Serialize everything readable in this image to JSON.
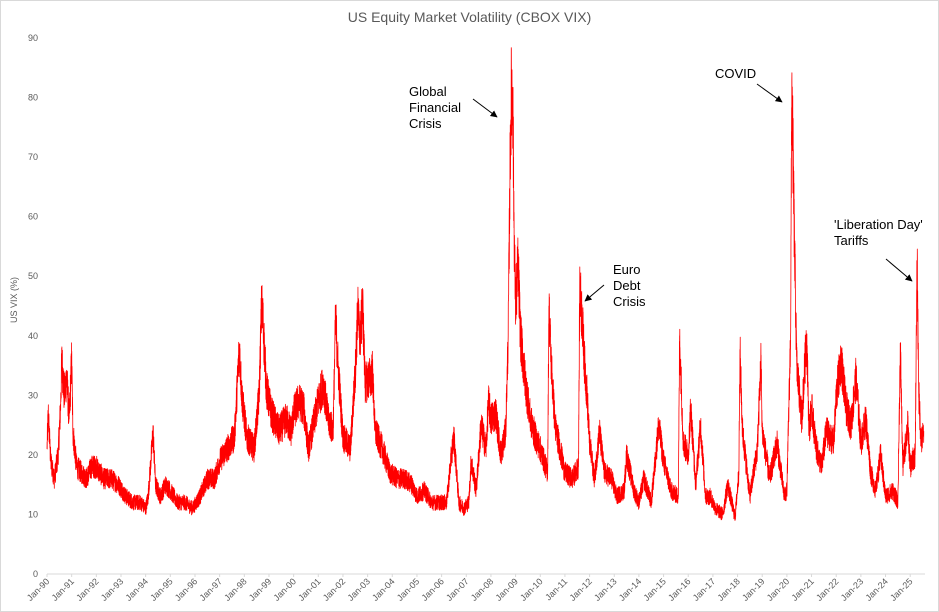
{
  "chart_data": {
    "type": "line",
    "title": "US Equity Market Volatility (CBOX VIX)",
    "ylabel": "US VIX (%)",
    "xlabel": "",
    "ylim": [
      0,
      90
    ],
    "yticks": [
      0,
      10,
      20,
      30,
      40,
      50,
      60,
      70,
      80,
      90
    ],
    "grid": false,
    "line_color": "#ff0000",
    "x_tick_labels": [
      "Jan-90",
      "Jan-91",
      "Jan-92",
      "Jan-93",
      "Jan-94",
      "Jan-95",
      "Jan-96",
      "Jan-97",
      "Jan-98",
      "Jan-99",
      "Jan-00",
      "Jan-01",
      "Jan-02",
      "Jan-03",
      "Jan-04",
      "Jan-05",
      "Jan-06",
      "Jan-07",
      "Jan-08",
      "Jan-09",
      "Jan-10",
      "Jan-11",
      "Jan-12",
      "Jan-13",
      "Jan-14",
      "Jan-15",
      "Jan-16",
      "Jan-17",
      "Jan-18",
      "Jan-19",
      "Jan-20",
      "Jan-21",
      "Jan-22",
      "Jan-23",
      "Jan-24",
      "Jan-25"
    ],
    "series": [
      {
        "values": [
          [
            1990.0,
            21
          ],
          [
            1990.05,
            27
          ],
          [
            1990.15,
            19
          ],
          [
            1990.3,
            16
          ],
          [
            1990.45,
            20
          ],
          [
            1990.55,
            28
          ],
          [
            1990.6,
            36
          ],
          [
            1990.7,
            30
          ],
          [
            1990.8,
            33
          ],
          [
            1990.9,
            26
          ],
          [
            1991.0,
            36
          ],
          [
            1991.05,
            24
          ],
          [
            1991.2,
            18
          ],
          [
            1991.4,
            17
          ],
          [
            1991.6,
            16
          ],
          [
            1991.8,
            18
          ],
          [
            1992.0,
            18
          ],
          [
            1992.3,
            16
          ],
          [
            1992.6,
            16
          ],
          [
            1992.9,
            15
          ],
          [
            1993.2,
            13
          ],
          [
            1993.5,
            12
          ],
          [
            1993.8,
            12
          ],
          [
            1994.0,
            11
          ],
          [
            1994.1,
            13
          ],
          [
            1994.25,
            21
          ],
          [
            1994.3,
            24
          ],
          [
            1994.4,
            15
          ],
          [
            1994.6,
            13
          ],
          [
            1994.8,
            15
          ],
          [
            1995.0,
            14
          ],
          [
            1995.3,
            12
          ],
          [
            1995.6,
            12
          ],
          [
            1995.9,
            11
          ],
          [
            1996.2,
            13
          ],
          [
            1996.5,
            16
          ],
          [
            1996.8,
            16
          ],
          [
            1997.0,
            19
          ],
          [
            1997.3,
            21
          ],
          [
            1997.6,
            23
          ],
          [
            1997.8,
            38
          ],
          [
            1997.9,
            30
          ],
          [
            1998.1,
            23
          ],
          [
            1998.4,
            21
          ],
          [
            1998.6,
            30
          ],
          [
            1998.7,
            45
          ],
          [
            1998.75,
            43
          ],
          [
            1998.9,
            31
          ],
          [
            1999.1,
            27
          ],
          [
            1999.4,
            24
          ],
          [
            1999.7,
            26
          ],
          [
            1999.9,
            24
          ],
          [
            2000.0,
            27
          ],
          [
            2000.2,
            29
          ],
          [
            2000.4,
            28
          ],
          [
            2000.6,
            21
          ],
          [
            2000.9,
            27
          ],
          [
            2001.0,
            29
          ],
          [
            2001.2,
            32
          ],
          [
            2001.4,
            26
          ],
          [
            2001.6,
            24
          ],
          [
            2001.7,
            43
          ],
          [
            2001.8,
            35
          ],
          [
            2002.0,
            23
          ],
          [
            2002.3,
            21
          ],
          [
            2002.5,
            34
          ],
          [
            2002.6,
            44
          ],
          [
            2002.7,
            40
          ],
          [
            2002.8,
            45
          ],
          [
            2002.9,
            32
          ],
          [
            2003.1,
            33
          ],
          [
            2003.2,
            34
          ],
          [
            2003.3,
            24
          ],
          [
            2003.6,
            21
          ],
          [
            2003.9,
            17
          ],
          [
            2004.2,
            16
          ],
          [
            2004.5,
            16
          ],
          [
            2004.8,
            15
          ],
          [
            2005.0,
            13
          ],
          [
            2005.3,
            14
          ],
          [
            2005.6,
            12
          ],
          [
            2005.9,
            12
          ],
          [
            2006.2,
            12
          ],
          [
            2006.4,
            20
          ],
          [
            2006.5,
            23
          ],
          [
            2006.7,
            12
          ],
          [
            2006.9,
            11
          ],
          [
            2007.1,
            12
          ],
          [
            2007.2,
            19
          ],
          [
            2007.4,
            14
          ],
          [
            2007.6,
            25
          ],
          [
            2007.8,
            21
          ],
          [
            2007.9,
            29
          ],
          [
            2008.0,
            26
          ],
          [
            2008.2,
            27
          ],
          [
            2008.4,
            20
          ],
          [
            2008.6,
            24
          ],
          [
            2008.7,
            40
          ],
          [
            2008.78,
            70
          ],
          [
            2008.82,
            80
          ],
          [
            2008.88,
            81
          ],
          [
            2008.95,
            55
          ],
          [
            2009.0,
            45
          ],
          [
            2009.1,
            52
          ],
          [
            2009.2,
            40
          ],
          [
            2009.4,
            32
          ],
          [
            2009.6,
            26
          ],
          [
            2009.8,
            23
          ],
          [
            2010.0,
            21
          ],
          [
            2010.3,
            17
          ],
          [
            2010.35,
            45
          ],
          [
            2010.45,
            35
          ],
          [
            2010.6,
            25
          ],
          [
            2010.8,
            21
          ],
          [
            2011.0,
            17
          ],
          [
            2011.3,
            16
          ],
          [
            2011.55,
            18
          ],
          [
            2011.6,
            48
          ],
          [
            2011.7,
            43
          ],
          [
            2011.8,
            35
          ],
          [
            2011.9,
            30
          ],
          [
            2012.0,
            22
          ],
          [
            2012.2,
            16
          ],
          [
            2012.4,
            24
          ],
          [
            2012.6,
            17
          ],
          [
            2012.9,
            16
          ],
          [
            2013.1,
            13
          ],
          [
            2013.4,
            14
          ],
          [
            2013.5,
            20
          ],
          [
            2013.8,
            14
          ],
          [
            2014.0,
            12
          ],
          [
            2014.2,
            16
          ],
          [
            2014.5,
            12
          ],
          [
            2014.8,
            25
          ],
          [
            2015.0,
            19
          ],
          [
            2015.3,
            14
          ],
          [
            2015.6,
            13
          ],
          [
            2015.65,
            40
          ],
          [
            2015.8,
            22
          ],
          [
            2016.0,
            20
          ],
          [
            2016.1,
            28
          ],
          [
            2016.3,
            15
          ],
          [
            2016.5,
            25
          ],
          [
            2016.7,
            13
          ],
          [
            2016.9,
            13
          ],
          [
            2017.1,
            11
          ],
          [
            2017.4,
            10
          ],
          [
            2017.6,
            15
          ],
          [
            2017.9,
            9.5
          ],
          [
            2018.05,
            17
          ],
          [
            2018.1,
            37
          ],
          [
            2018.2,
            24
          ],
          [
            2018.5,
            13
          ],
          [
            2018.8,
            21
          ],
          [
            2018.95,
            36
          ],
          [
            2019.0,
            24
          ],
          [
            2019.3,
            16
          ],
          [
            2019.6,
            22
          ],
          [
            2019.9,
            13
          ],
          [
            2020.0,
            14
          ],
          [
            2020.15,
            40
          ],
          [
            2020.2,
            83
          ],
          [
            2020.3,
            57
          ],
          [
            2020.4,
            35
          ],
          [
            2020.6,
            26
          ],
          [
            2020.8,
            40
          ],
          [
            2020.9,
            24
          ],
          [
            2021.0,
            28
          ],
          [
            2021.2,
            21
          ],
          [
            2021.4,
            18
          ],
          [
            2021.6,
            24
          ],
          [
            2021.9,
            22
          ],
          [
            2022.0,
            30
          ],
          [
            2022.2,
            36
          ],
          [
            2022.4,
            28
          ],
          [
            2022.6,
            25
          ],
          [
            2022.8,
            33
          ],
          [
            2023.0,
            22
          ],
          [
            2023.2,
            26
          ],
          [
            2023.4,
            17
          ],
          [
            2023.6,
            14
          ],
          [
            2023.8,
            20
          ],
          [
            2024.0,
            13
          ],
          [
            2024.3,
            14
          ],
          [
            2024.5,
            12
          ],
          [
            2024.6,
            38
          ],
          [
            2024.7,
            18
          ],
          [
            2024.9,
            25
          ],
          [
            2025.0,
            18
          ],
          [
            2025.2,
            20
          ],
          [
            2025.25,
            40
          ],
          [
            2025.28,
            52
          ],
          [
            2025.35,
            30
          ],
          [
            2025.45,
            22
          ],
          [
            2025.55,
            24
          ]
        ]
      }
    ],
    "annotations": [
      {
        "lines": [
          "Global",
          "Financial",
          "Crisis"
        ],
        "x": 2008.85,
        "y": 80
      },
      {
        "lines": [
          "Euro",
          "Debt",
          "Crisis"
        ],
        "x": 2011.65,
        "y": 46
      },
      {
        "lines": [
          "COVID"
        ],
        "x": 2020.1,
        "y": 80
      },
      {
        "lines": [
          "'Liberation Day'",
          "Tariffs"
        ],
        "x": 2025.2,
        "y": 50
      }
    ]
  }
}
